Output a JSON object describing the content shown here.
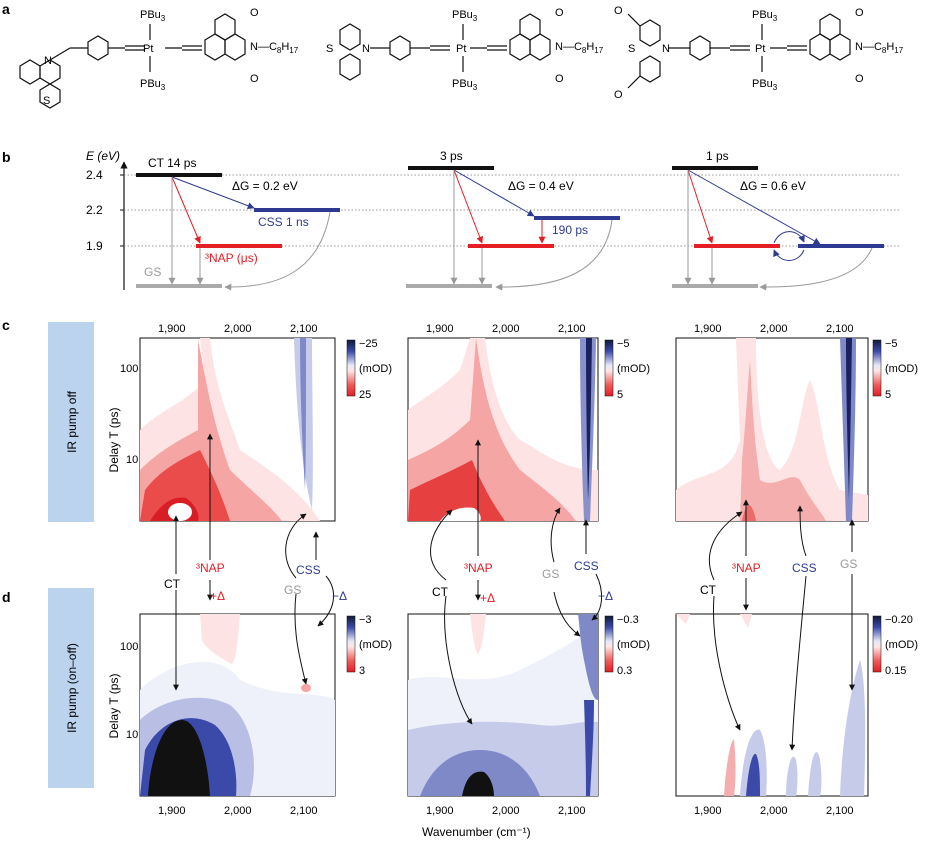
{
  "panels": {
    "a": "a",
    "b": "b",
    "c": "c",
    "d": "d"
  },
  "molecules": {
    "pbu3": "PBu",
    "pbu3_sub": "3",
    "pt": "Pt",
    "n": "N",
    "s": "S",
    "o": "O",
    "c8h17": "N—C",
    "c8h17_sub1": "8",
    "c8h17_h": "H",
    "c8h17_sub2": "17"
  },
  "energy_diagram": {
    "axis_label": "E (eV)",
    "levels": [
      "2.4",
      "2.2",
      "1.9"
    ],
    "gs": "GS",
    "nap": "³NAP (μs)",
    "columns": [
      {
        "ct": "CT 14 ps",
        "dg": "ΔG = 0.2 eV",
        "css": "CSS  1 ns"
      },
      {
        "ct": "3 ps",
        "dg": "ΔG = 0.4 eV",
        "css": "190 ps"
      },
      {
        "ct": "1 ps",
        "dg": "ΔG = 0.6 eV",
        "css": ""
      }
    ]
  },
  "side_labels": {
    "c": "IR pump off",
    "d": "IR pump (on–off)"
  },
  "axes": {
    "ylabel": "Delay T (ps)",
    "xlabel": "Wavenumber (cm⁻¹)",
    "xticks": [
      "1,900",
      "2,000",
      "2,100"
    ],
    "yticks": [
      "100",
      "10"
    ]
  },
  "colorbars": {
    "c": [
      {
        "top": "−25",
        "unit": "(mOD)",
        "bottom": "25"
      },
      {
        "top": "−5",
        "unit": "(mOD)",
        "bottom": "5"
      },
      {
        "top": "−5",
        "unit": "(mOD)",
        "bottom": "5"
      }
    ],
    "d": [
      {
        "top": "−3",
        "unit": "(mOD)",
        "bottom": "3"
      },
      {
        "top": "−0.3",
        "unit": "(mOD)",
        "bottom": "0.3"
      },
      {
        "top": "−0.20",
        "unit": "(mOD)",
        "bottom": "0.15"
      }
    ]
  },
  "annotations": {
    "ct": "CT",
    "nap": "³NAP",
    "css": "CSS",
    "gs": "GS",
    "plus_delta": "+Δ",
    "minus_delta": "−Δ"
  },
  "colors": {
    "red": "#e31e24",
    "blue": "#2e3a92",
    "gray": "#9a9a9a",
    "side_panel": "#bcd3ee"
  }
}
